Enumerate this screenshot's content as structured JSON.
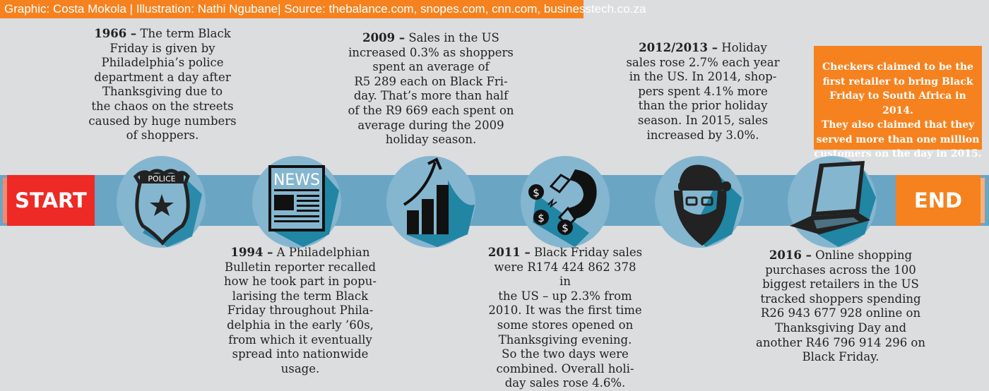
{
  "credit": "Graphic: Costa Mokola | Illustration: Nathi Ngubane| Source: thebalance.com, snopes.com, cnn.com, businesstech.co.za",
  "start_label": "START",
  "end_label": "END",
  "colors": {
    "band": "#6ba5c4",
    "start": "#ed2a25",
    "accent": "#f5821f",
    "circle": "#85b6cf",
    "shadow": "#2185a4"
  },
  "events": [
    {
      "year": "1966 –",
      "text": " The term Black\nFriday is given by\nPhiladelphia’s police\ndepartment a day after\nThanksgiving  due to\nthe chaos on the streets\ncaused by huge numbers\nof shoppers.",
      "icon": "police-badge-icon",
      "badge_text": "POLICE"
    },
    {
      "year": "1994 –",
      "text": " A Philadelphian\nBulletin reporter recalled\nhow he took part in popu-\nlarising the term Black\nFriday throughout Phila-\ndelphia in the early ’60s,\nfrom which it eventually\nspread into nationwide\nusage.",
      "icon": "newspaper-icon",
      "badge_text": "NEWS"
    },
    {
      "year": "2009 –",
      "text": " Sales in the US\nincreased 0.3% as shoppers\nspent an average of\nR5 289 each on Black Fri-\nday. That’s more than half\nof the R9 669 each spent on\naverage during the 2009\nholiday season.",
      "icon": "growth-chart-icon"
    },
    {
      "year": "2011 –",
      "text": " Black Friday sales\nwere R174 424 862 378 in\nthe US – up 2.3% from\n2010. It was the first time\nsome stores opened on\nThanksgiving evening.\nSo the two days were\ncombined. Overall holi-\nday sales rose 4.6%.",
      "icon": "magnet-money-icon"
    },
    {
      "year": "2012/2013 –",
      "text": " Holiday\nsales rose 2.7% each year\nin the US. In 2014, shop-\npers spent 4.1% more\nthan the prior holiday\nseason.  In 2015, sales\nincreased by 3.0%.",
      "icon": "santa-icon"
    },
    {
      "year": "2016 –",
      "text": " Online shopping\npurchases across the 100\nbiggest retailers in the US\ntracked shoppers spending\nR26 943 677 928 online on\nThanksgiving Day and\nanother R46 796 914 296 on\nBlack Friday.",
      "icon": "laptop-icon"
    }
  ],
  "callout": "Checkers claimed to be the\nfirst retailer to bring Black\nFriday to South Africa in 2014.\nThey also claimed that they\nserved more than one million\ncustomers on the day in 2015."
}
